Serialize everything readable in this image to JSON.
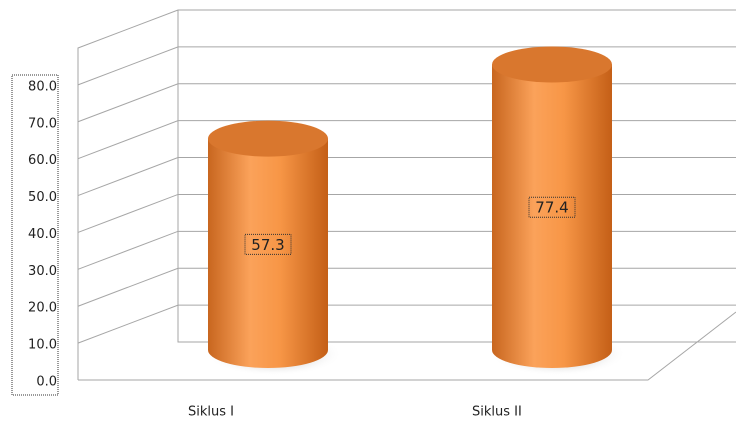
{
  "chart_data": {
    "type": "cylinder",
    "categories": [
      "Siklus I",
      "Siklus II"
    ],
    "values": [
      57.3,
      77.4
    ],
    "color": "#f79646",
    "ylim": [
      0,
      90
    ],
    "yticks": [
      {
        "value": 0,
        "label": "0.0"
      },
      {
        "value": 10,
        "label": "10.0"
      },
      {
        "value": 20,
        "label": "20.0"
      },
      {
        "value": 30,
        "label": "30.0"
      },
      {
        "value": 40,
        "label": "40.0"
      },
      {
        "value": 50,
        "label": "50.0"
      },
      {
        "value": 60,
        "label": "60.0"
      },
      {
        "value": 70,
        "label": "70.0"
      },
      {
        "value": 80,
        "label": "80.0"
      }
    ],
    "grid": true
  }
}
